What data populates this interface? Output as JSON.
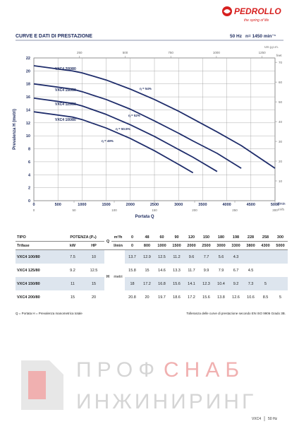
{
  "header": {
    "brand": "PEDROLLO",
    "tagline": "the spring of life"
  },
  "section": {
    "title": "CURVE E DATI DI PRESTAZIONE",
    "frequency": "50 Hz",
    "speed": "n= 1450 min⁻¹"
  },
  "chart_data": {
    "type": "line",
    "xlabel": "Portata Q",
    "ylabel": "Prevalenza H (metri)",
    "xunit": "l/min",
    "x2unit": "m³/h",
    "x3unit": "US g.p.m.",
    "y2unit": "feet",
    "xlim": [
      0,
      5000
    ],
    "xticks": [
      0,
      500,
      1000,
      1500,
      2000,
      2500,
      3000,
      3500,
      4000,
      4500,
      5000
    ],
    "ylim": [
      0,
      22
    ],
    "yticks": [
      0,
      2,
      4,
      6,
      8,
      10,
      12,
      14,
      16,
      18,
      20,
      22
    ],
    "x2lim": [
      0,
      300
    ],
    "x2ticks": [
      0,
      50,
      100,
      150,
      200,
      250,
      300
    ],
    "x3lim": [
      0,
      1321
    ],
    "x3ticks": [
      250,
      500,
      750,
      1000,
      1250
    ],
    "y2lim": [
      0,
      72.2
    ],
    "y2ticks": [
      10,
      20,
      30,
      40,
      50,
      60,
      70
    ],
    "grid": true,
    "color": "#1f2d6b",
    "curve_labels": [
      "VXC4 200/80",
      "VXC4 150/80",
      "VXC4 125/80",
      "VXC4 100/80"
    ],
    "efficiency_labels": [
      "η = 54%",
      "η = 52%",
      "η = 50.5%",
      "η = 49%"
    ]
  },
  "table": {
    "head": {
      "tipo": "TIPO",
      "trifase": "Trifase",
      "potenza": "POTENZA (P₂)",
      "kw": "kW",
      "hp": "HP",
      "q": "Q",
      "q_m3h_unit": "m³/h",
      "q_lmin_unit": "l/min",
      "h": "H",
      "h_unit": "metri"
    },
    "q_m3h": [
      0,
      48,
      60,
      90,
      120,
      150,
      180,
      198,
      228,
      258,
      300
    ],
    "q_lmin": [
      0,
      800,
      1000,
      1500,
      2000,
      2500,
      3000,
      3300,
      3800,
      4300,
      5000
    ],
    "rows": [
      {
        "type": "VXC4 100/80",
        "kw": 7.5,
        "hp": 10,
        "h": [
          13.7,
          12.9,
          12.5,
          11.2,
          9.6,
          7.7,
          5.6,
          4.3
        ]
      },
      {
        "type": "VXC4 125/80",
        "kw": 9.2,
        "hp": 12.5,
        "h": [
          15.8,
          15,
          14.6,
          13.3,
          11.7,
          9.9,
          7.9,
          6.7,
          4.5
        ]
      },
      {
        "type": "VXC4 150/80",
        "kw": 11,
        "hp": 15,
        "h": [
          18,
          17.2,
          16.8,
          15.6,
          14.1,
          12.3,
          10.4,
          9.2,
          7.3,
          5
        ]
      },
      {
        "type": "VXC4 200/80",
        "kw": 15,
        "hp": 20,
        "h": [
          20.8,
          20,
          19.7,
          18.6,
          17.2,
          15.6,
          13.8,
          12.6,
          10.6,
          8.5,
          5
        ]
      }
    ]
  },
  "notes": {
    "legend": "Q = Portata   H = Prevalenza manometrica totale",
    "tolerance": "Tolleranza delle curve di prestazione secondo EN ISO 9906 Grado 3B."
  },
  "watermark": [
    "ПРОФ",
    "СНАБ",
    "ИНЖИНИРИНГ"
  ],
  "footer": {
    "model": "VXC4",
    "frequency": "50 Hz"
  }
}
